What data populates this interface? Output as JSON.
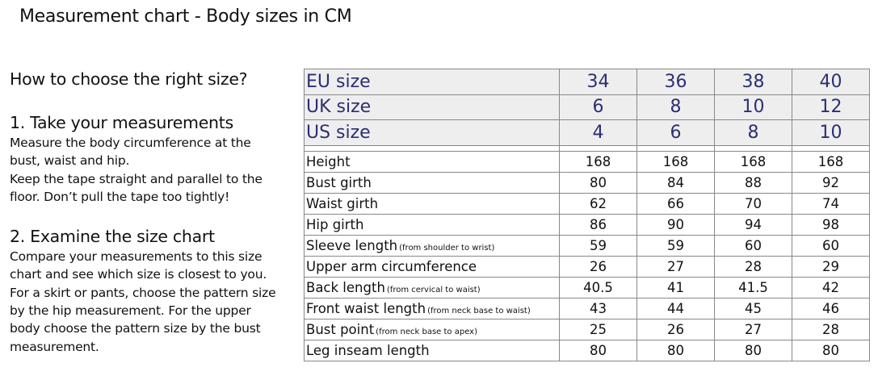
{
  "title": "Measurement chart - Body sizes in CM",
  "guide": {
    "heading": "How to choose the right size?",
    "step1_title": "1. Take your measurements",
    "step1_lines": [
      "Measure the body circumference at the",
      "bust, waist and hip.",
      "Keep the tape straight and parallel to the",
      "floor. Don’t pull the tape too tightly!"
    ],
    "step2_title": "2. Examine the size chart",
    "step2_lines": [
      "Compare your measurements to this size",
      "chart and see which size is closest to you.",
      "For a skirt or pants, choose the pattern size",
      "by the hip measurement. For the upper",
      "body choose the pattern size by the bust",
      "measurement."
    ]
  },
  "size_rows": [
    {
      "label": "EU size",
      "values": [
        "34",
        "36",
        "38",
        "40"
      ]
    },
    {
      "label": "UK size",
      "values": [
        "6",
        "8",
        "10",
        "12"
      ]
    },
    {
      "label": "US size",
      "values": [
        "4",
        "6",
        "8",
        "10"
      ]
    }
  ],
  "measure_rows": [
    {
      "label": "Height",
      "note": "",
      "values": [
        "168",
        "168",
        "168",
        "168"
      ]
    },
    {
      "label": "Bust girth",
      "note": "",
      "values": [
        "80",
        "84",
        "88",
        "92"
      ]
    },
    {
      "label": "Waist girth",
      "note": "",
      "values": [
        "62",
        "66",
        "70",
        "74"
      ]
    },
    {
      "label": "Hip girth",
      "note": "",
      "values": [
        "86",
        "90",
        "94",
        "98"
      ]
    },
    {
      "label": "Sleeve length",
      "note": "(from shoulder to wrist)",
      "values": [
        "59",
        "59",
        "60",
        "60"
      ]
    },
    {
      "label": "Upper arm circumference",
      "note": "",
      "values": [
        "26",
        "27",
        "28",
        "29"
      ]
    },
    {
      "label": "Back length",
      "note": "(from cervical to waist)",
      "values": [
        "40.5",
        "41",
        "41.5",
        "42"
      ]
    },
    {
      "label": "Front waist length",
      "note": "(from neck base to waist)",
      "values": [
        "43",
        "44",
        "45",
        "46"
      ]
    },
    {
      "label": "Bust point",
      "note": "(from neck base to apex)",
      "values": [
        "25",
        "26",
        "27",
        "28"
      ]
    },
    {
      "label": "Leg inseam length",
      "note": "",
      "values": [
        "80",
        "80",
        "80",
        "80"
      ]
    }
  ]
}
